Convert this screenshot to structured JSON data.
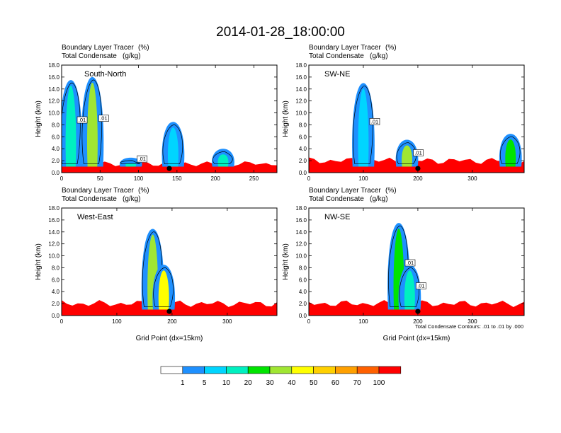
{
  "title": "2014-01-28_18:00:00",
  "footnote": "Total Condensate Contours: .01 to .01 by .000",
  "chart_data": [
    {
      "type": "heatmap",
      "panel": "South-North",
      "subtitle_left_1": "Boundary Layer Tracer",
      "subtitle_unit_1": "(%)",
      "subtitle_left_2": "Total Condensate",
      "subtitle_unit_2": "(g/kg)",
      "ylabel": "Height (km)",
      "xlabel": "",
      "xlim": [
        0,
        280
      ],
      "ylim": [
        0,
        18
      ],
      "xticks": [
        0,
        50,
        100,
        150,
        200,
        250
      ],
      "yticks": [
        0.0,
        2.0,
        4.0,
        6.0,
        8.0,
        10.0,
        12.0,
        14.0,
        16.0,
        18.0
      ],
      "contour_labels": [
        ".01",
        ".01",
        ".01"
      ],
      "marker_x": 140,
      "surface_band_top_km": 1.5,
      "plumes": [
        {
          "x": 12,
          "top_km": 15.5,
          "level": 10
        },
        {
          "x": 40,
          "top_km": 16.0,
          "level": 30
        },
        {
          "x": 90,
          "top_km": 2.5,
          "level": 10
        },
        {
          "x": 145,
          "top_km": 8.5,
          "level": 5
        },
        {
          "x": 210,
          "top_km": 4.0,
          "level": 10
        }
      ]
    },
    {
      "type": "heatmap",
      "panel": "SW-NE",
      "subtitle_left_1": "Boundary Layer Tracer",
      "subtitle_unit_1": "(%)",
      "subtitle_left_2": "Total Condensate",
      "subtitle_unit_2": "(g/kg)",
      "ylabel": "Height (km)",
      "xlabel": "",
      "xlim": [
        0,
        395
      ],
      "ylim": [
        0,
        18
      ],
      "xticks": [
        0,
        100,
        200,
        300
      ],
      "yticks": [
        0.0,
        2.0,
        4.0,
        6.0,
        8.0,
        10.0,
        12.0,
        14.0,
        16.0,
        18.0
      ],
      "contour_labels": [
        ".01",
        ".01"
      ],
      "marker_x": 200,
      "surface_band_top_km": 2.0,
      "plumes": [
        {
          "x": 100,
          "top_km": 15.0,
          "level": 5
        },
        {
          "x": 180,
          "top_km": 5.5,
          "level": 30
        },
        {
          "x": 370,
          "top_km": 6.5,
          "level": 20
        }
      ]
    },
    {
      "type": "heatmap",
      "panel": "West-East",
      "subtitle_left_1": "Boundary Layer Tracer",
      "subtitle_unit_1": "(%)",
      "subtitle_left_2": "Total Condensate",
      "subtitle_unit_2": "(g/kg)",
      "ylabel": "Height (km)",
      "xlabel": "Grid Point (dx=15km)",
      "xlim": [
        0,
        390
      ],
      "ylim": [
        0,
        18
      ],
      "xticks": [
        0,
        100,
        200,
        300
      ],
      "yticks": [
        0.0,
        2.0,
        4.0,
        6.0,
        8.0,
        10.0,
        12.0,
        14.0,
        16.0,
        18.0
      ],
      "contour_labels": [],
      "marker_x": 195,
      "surface_band_top_km": 2.0,
      "plumes": [
        {
          "x": 165,
          "top_km": 14.5,
          "level": 30
        },
        {
          "x": 185,
          "top_km": 8.5,
          "level": 40
        }
      ]
    },
    {
      "type": "heatmap",
      "panel": "NW-SE",
      "subtitle_left_1": "Boundary Layer Tracer",
      "subtitle_unit_1": "(%)",
      "subtitle_left_2": "Total Condensate",
      "subtitle_unit_2": "(g/kg)",
      "ylabel": "Height (km)",
      "xlabel": "Grid Point (dx=15km)",
      "xlim": [
        0,
        395
      ],
      "ylim": [
        0,
        18
      ],
      "xticks": [
        0,
        100,
        200,
        300
      ],
      "yticks": [
        0.0,
        2.0,
        4.0,
        6.0,
        8.0,
        10.0,
        12.0,
        14.0,
        16.0,
        18.0
      ],
      "contour_labels": [
        ".01",
        ".01"
      ],
      "marker_x": 200,
      "surface_band_top_km": 2.0,
      "plumes": [
        {
          "x": 165,
          "top_km": 15.5,
          "level": 20
        },
        {
          "x": 185,
          "top_km": 8.5,
          "level": 10
        }
      ]
    }
  ],
  "colorbar": {
    "labels": [
      "1",
      "5",
      "10",
      "20",
      "30",
      "40",
      "50",
      "60",
      "70",
      "100"
    ],
    "colors": [
      "#ffffff",
      "#1e90ff",
      "#00d5ff",
      "#00f0c0",
      "#00e400",
      "#a0e632",
      "#ffff00",
      "#ffd000",
      "#ffa000",
      "#ff6000",
      "#ff0000"
    ]
  }
}
